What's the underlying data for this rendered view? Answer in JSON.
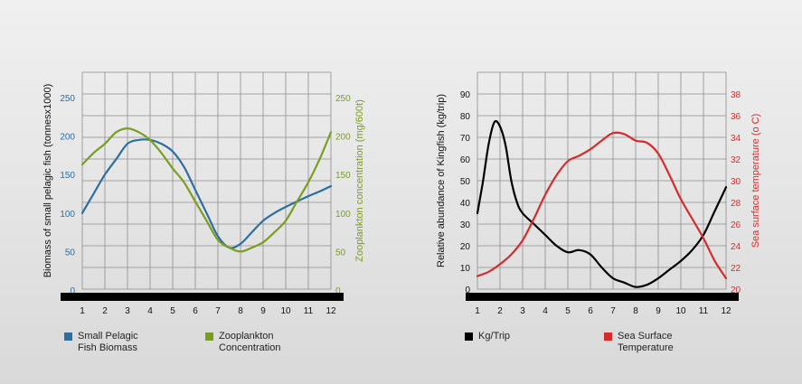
{
  "colors": {
    "blue": "#2e6e9e",
    "green": "#7a9e1f",
    "black": "#000000",
    "red": "#d42c2c",
    "grid": "#8c8c8c",
    "axis_bar": "#000000"
  },
  "chart_data": [
    {
      "type": "line",
      "xlabel": "",
      "x": [
        1,
        2,
        3,
        4,
        5,
        6,
        7,
        8,
        9,
        10,
        11,
        12
      ],
      "xlim": [
        1,
        12
      ],
      "y_left": {
        "label": "Biomass of small pelagic fish (tonnesx1000)",
        "ticks": [
          "0",
          "50",
          "100",
          "150",
          "200",
          "250"
        ],
        "lim": [
          0,
          250
        ]
      },
      "y_right": {
        "label": "Zooplankton concentration (mg/600t)",
        "ticks": [
          "0",
          "50",
          "100",
          "150",
          "200",
          "250"
        ],
        "lim": [
          0,
          250
        ]
      },
      "grid": true,
      "series": [
        {
          "name": "Small Pelagic Fish Biomass",
          "axis": "left",
          "color": "#2e6e9e",
          "x": [
            1,
            1.5,
            2,
            2.5,
            3,
            3.5,
            4,
            4.5,
            5,
            5.5,
            6,
            6.5,
            7,
            7.5,
            8,
            8.5,
            9,
            9.5,
            10,
            10.5,
            11,
            11.5,
            12
          ],
          "values": [
            100,
            125,
            150,
            170,
            190,
            195,
            195,
            190,
            180,
            160,
            130,
            100,
            70,
            55,
            60,
            75,
            90,
            100,
            108,
            115,
            122,
            128,
            135
          ]
        },
        {
          "name": "Zooplankton Concentration",
          "axis": "right",
          "color": "#7a9e1f",
          "x": [
            1,
            1.5,
            2,
            2.5,
            3,
            3.5,
            4,
            4.5,
            5,
            5.5,
            6,
            6.5,
            7,
            7.5,
            8,
            8.5,
            9,
            9.5,
            10,
            10.5,
            11,
            11.5,
            12
          ],
          "values": [
            163,
            178,
            190,
            205,
            210,
            205,
            195,
            178,
            158,
            140,
            115,
            90,
            65,
            55,
            50,
            55,
            62,
            75,
            90,
            115,
            140,
            170,
            205
          ]
        }
      ]
    },
    {
      "type": "line",
      "xlabel": "",
      "x": [
        1,
        2,
        3,
        4,
        5,
        6,
        7,
        8,
        9,
        10,
        11,
        12
      ],
      "xlim": [
        1,
        12
      ],
      "y_left": {
        "label": "Relative abundance of Kingfish (kg/trip)",
        "ticks": [
          "0",
          "10",
          "20",
          "30",
          "40",
          "50",
          "60",
          "70",
          "80",
          "90"
        ],
        "lim": [
          0,
          90
        ]
      },
      "y_right": {
        "label": "Sea surface temperature (o C)",
        "ticks": [
          "20",
          "22",
          "24",
          "26",
          "28",
          "30",
          "32",
          "34",
          "36",
          "38"
        ],
        "lim": [
          20,
          38
        ]
      },
      "grid": true,
      "series": [
        {
          "name": "Kg/Trip",
          "axis": "left",
          "color": "#000000",
          "x": [
            1,
            1.25,
            1.5,
            1.75,
            2,
            2.25,
            2.5,
            2.75,
            3,
            3.5,
            4,
            4.5,
            5,
            5.5,
            6,
            6.5,
            7,
            7.5,
            8,
            8.5,
            9,
            9.5,
            10,
            10.5,
            11,
            11.5,
            12
          ],
          "values": [
            35,
            50,
            67,
            77,
            75,
            66,
            50,
            40,
            35,
            30,
            25,
            20,
            17,
            18,
            16,
            10,
            5,
            3,
            1,
            2,
            5,
            9,
            13,
            18,
            25,
            36,
            47
          ]
        },
        {
          "name": "Sea Surface Temperature",
          "axis": "right",
          "color": "#d42c2c",
          "x": [
            1,
            1.5,
            2,
            2.5,
            3,
            3.5,
            4,
            4.5,
            5,
            5.5,
            6,
            6.5,
            7,
            7.5,
            8,
            8.5,
            9,
            9.5,
            10,
            10.5,
            11,
            11.5,
            12
          ],
          "values": [
            21.2,
            21.6,
            22.3,
            23.2,
            24.5,
            26.5,
            28.7,
            30.5,
            31.8,
            32.3,
            32.9,
            33.7,
            34.4,
            34.3,
            33.7,
            33.5,
            32.5,
            30.5,
            28.3,
            26.5,
            24.7,
            22.6,
            21.0
          ]
        }
      ]
    }
  ],
  "legend": {
    "left": [
      {
        "label": "Small Pelagic\nFish Biomass",
        "color": "#2e6e9e"
      },
      {
        "label": "Zooplankton\nConcentration",
        "color": "#7a9e1f"
      }
    ],
    "right": [
      {
        "label": "Kg/Trip",
        "color": "#000000"
      },
      {
        "label": "Sea Surface\nTemperature",
        "color": "#d42c2c"
      }
    ]
  },
  "x_tick_labels": [
    "1",
    "2",
    "3",
    "4",
    "5",
    "6",
    "7",
    "8",
    "9",
    "10",
    "11",
    "12"
  ]
}
